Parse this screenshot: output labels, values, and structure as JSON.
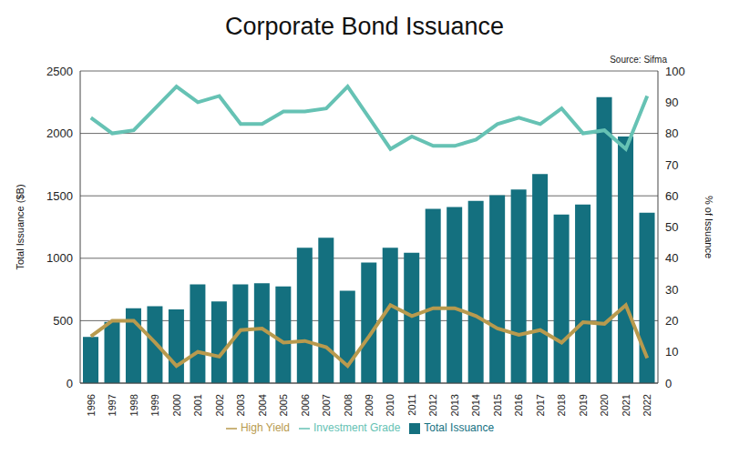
{
  "chart_data": {
    "type": "bar",
    "title": "Corporate Bond Issuance",
    "annotations": [
      "Source: Sifma"
    ],
    "ylabel": "Total Issuance ($B)",
    "y2label": "% of Issuance",
    "categories": [
      "1996",
      "1997",
      "1998",
      "1999",
      "2000",
      "2001",
      "2002",
      "2003",
      "2004",
      "2005",
      "2006",
      "2007",
      "2008",
      "2009",
      "2010",
      "2011",
      "2012",
      "2013",
      "2014",
      "2015",
      "2016",
      "2017",
      "2018",
      "2019",
      "2020",
      "2021",
      "2022"
    ],
    "series": [
      {
        "name": "Total Issuance",
        "type": "bar",
        "color": "#14707f",
        "values": [
          370,
          490,
          600,
          615,
          590,
          790,
          655,
          790,
          800,
          775,
          1085,
          1165,
          740,
          965,
          1085,
          1045,
          1395,
          1410,
          1460,
          1505,
          1550,
          1675,
          1350,
          1430,
          2290,
          1975,
          1365
        ]
      },
      {
        "name": "Investment Grade",
        "type": "line",
        "axis": "y2",
        "color": "#66c2b4",
        "values": [
          85,
          80,
          81,
          88,
          95,
          90,
          92,
          83,
          83,
          87,
          87,
          88,
          95,
          85,
          75,
          79,
          76,
          76,
          78,
          83,
          85,
          83,
          88,
          80,
          81,
          75,
          92
        ]
      },
      {
        "name": "High Yield",
        "type": "line",
        "axis": "y2",
        "color": "#b89a4e",
        "values": [
          15,
          20,
          20,
          13,
          5.5,
          10,
          8.5,
          17,
          17.5,
          13,
          13.5,
          11.5,
          5.5,
          15,
          25,
          21.5,
          24,
          24,
          21.5,
          17.5,
          15.5,
          17,
          13,
          19.5,
          19,
          25,
          8
        ]
      }
    ],
    "ylim": [
      0,
      2500
    ],
    "yticks": [
      0,
      500,
      1000,
      1500,
      2000,
      2500
    ],
    "y2lim": [
      0,
      100
    ],
    "y2ticks": [
      0,
      10,
      20,
      30,
      40,
      50,
      60,
      70,
      80,
      90,
      100
    ],
    "grid": true,
    "legend": "bottom"
  }
}
